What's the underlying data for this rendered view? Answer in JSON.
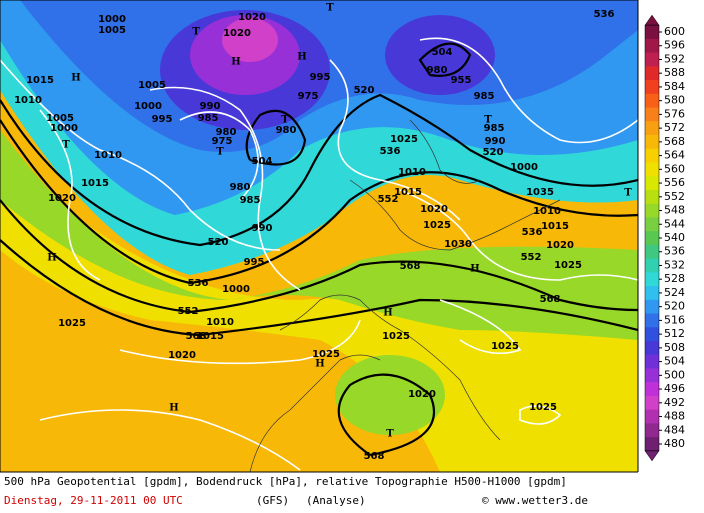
{
  "map_labels": [
    "1020",
    "T",
    "T",
    "1020",
    "H",
    "H",
    "995",
    "1000",
    "1005",
    "1015",
    "H",
    "1010",
    "1005",
    "1000",
    "T",
    "1010",
    "1015",
    "1020",
    "H",
    "1005",
    "1000",
    "995",
    "990",
    "985",
    "980",
    "975",
    "T",
    "504",
    "T",
    "980",
    "975",
    "520",
    "504",
    "980",
    "955",
    "985",
    "T",
    "985",
    "990",
    "520",
    "536",
    "1000",
    "536",
    "1010",
    "1015",
    "552",
    "1020",
    "1025",
    "1030",
    "1035",
    "1010",
    "1015",
    "536",
    "1020",
    "552",
    "1025",
    "T",
    "568",
    "H",
    "568",
    "985",
    "990",
    "995",
    "980",
    "520",
    "536",
    "1000",
    "552",
    "568",
    "1010",
    "1015",
    "1020",
    "1025",
    "H",
    "1025",
    "1025",
    "1025",
    "H",
    "H",
    "1020",
    "1025",
    "T",
    "568",
    "1025"
  ],
  "colorbar": {
    "ticks": [
      600,
      596,
      592,
      588,
      584,
      580,
      576,
      572,
      568,
      564,
      560,
      556,
      552,
      548,
      544,
      540,
      536,
      532,
      528,
      524,
      520,
      516,
      512,
      508,
      504,
      500,
      496,
      492,
      488,
      484,
      480
    ],
    "colors": [
      "#7a1040",
      "#a01848",
      "#c02050",
      "#e02a2a",
      "#f04020",
      "#f86018",
      "#f88018",
      "#f8a010",
      "#f8b808",
      "#f8d000",
      "#f0e000",
      "#d8e800",
      "#b8e010",
      "#98d828",
      "#78d040",
      "#58c850",
      "#40c880",
      "#30d0b0",
      "#30d8d8",
      "#30c0f0",
      "#3098f0",
      "#3070e8",
      "#3050e0",
      "#4838d8",
      "#7030d8",
      "#9830d8",
      "#c030d8",
      "#d040c8",
      "#b030b0",
      "#902890",
      "#702070"
    ]
  },
  "footer": {
    "line1": "500 hPa Geopotential [gpdm], Bodendruck [hPa], relative Topographie H500-H1000 [gpdm]",
    "date": "Dienstag, 29-11-2011   00 UTC",
    "model": "(GFS)",
    "run": "(Analyse)",
    "credit": "© www.wetter3.de"
  }
}
